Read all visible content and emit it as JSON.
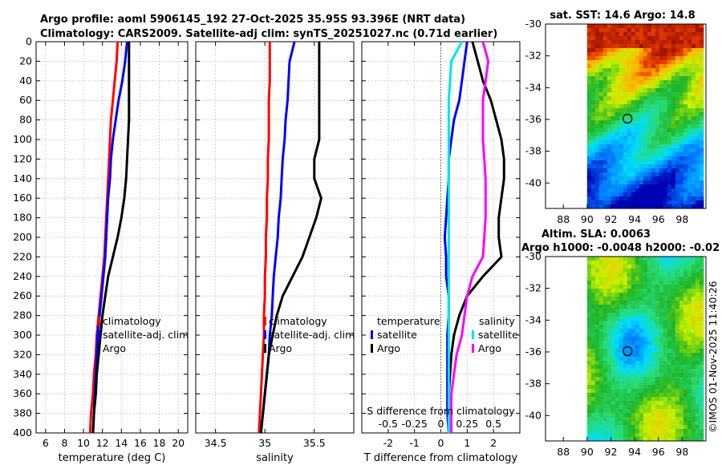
{
  "chart_data": {
    "type": "line",
    "title_line1": "Argo profile: aoml 5906145_192 27-Oct-2025 35.95S 93.396E (NRT data)",
    "title_line2": "Climatology: CARS2009. Satellite-adj clim: synTS_20251027.nc (0.71d earlier)",
    "depth": [
      0,
      20,
      40,
      60,
      80,
      100,
      120,
      140,
      160,
      180,
      200,
      220,
      240,
      260,
      280,
      300,
      320,
      340,
      360,
      380,
      400
    ],
    "ylim": [
      400,
      0
    ],
    "yticks": [
      0,
      20,
      40,
      60,
      80,
      100,
      120,
      140,
      160,
      180,
      200,
      220,
      240,
      260,
      280,
      300,
      320,
      340,
      360,
      380,
      400
    ],
    "panels": [
      {
        "name": "temperature",
        "xlabel": "temperature (deg C)",
        "xlim": [
          5,
          21
        ],
        "xticks": [
          "6",
          "8",
          "10",
          "12",
          "14",
          "16",
          "18",
          "20"
        ],
        "xtick_values": [
          6,
          8,
          10,
          12,
          14,
          16,
          18,
          20
        ],
        "series": [
          {
            "name": "climatology",
            "color": "#ff0000",
            "values": [
              13.6,
              13.5,
              13.3,
              13.1,
              12.9,
              12.8,
              12.7,
              12.6,
              12.5,
              12.4,
              12.3,
              12.2,
              12.0,
              11.8,
              11.6,
              11.4,
              11.3,
              11.1,
              11.0,
              10.8,
              10.7
            ]
          },
          {
            "name": "satellite-adj. clim",
            "color": "#0000ff",
            "values": [
              14.6,
              14.4,
              14.1,
              13.7,
              13.4,
              13.1,
              12.9,
              12.8,
              12.6,
              12.5,
              12.4,
              12.3,
              12.1,
              11.9,
              11.7,
              11.5,
              11.4,
              11.3,
              11.2,
              11.1,
              11.0
            ]
          },
          {
            "name": "Argo",
            "color": "#000000",
            "values": [
              14.8,
              14.8,
              14.8,
              14.8,
              14.8,
              14.7,
              14.6,
              14.5,
              14.3,
              14.0,
              13.6,
              13.1,
              12.6,
              12.3,
              12.0,
              11.8,
              11.6,
              11.4,
              11.3,
              11.1,
              11.0
            ]
          }
        ],
        "legend": [
          "climatology",
          "satellite-adj. clim",
          "Argo"
        ]
      },
      {
        "name": "salinity",
        "xlabel": "salinity",
        "xlim": [
          34.3,
          35.9
        ],
        "xticks": [
          "34.5",
          "35",
          "35.5"
        ],
        "xtick_values": [
          34.5,
          35.0,
          35.5
        ],
        "series": [
          {
            "name": "climatology",
            "color": "#ff0000",
            "values": [
              35.05,
              35.05,
              35.05,
              35.04,
              35.04,
              35.04,
              35.03,
              35.03,
              35.02,
              35.02,
              35.01,
              35.01,
              35.0,
              35.0,
              34.99,
              34.99,
              34.98,
              34.97,
              34.96,
              34.95,
              34.94
            ]
          },
          {
            "name": "satellite-adj. clim",
            "color": "#0000ff",
            "values": [
              35.3,
              35.25,
              35.24,
              35.23,
              35.21,
              35.2,
              35.18,
              35.17,
              35.16,
              35.14,
              35.13,
              35.11,
              35.09,
              35.08,
              35.07,
              35.05,
              35.04,
              35.02,
              35.0,
              34.98,
              34.96
            ]
          },
          {
            "name": "Argo",
            "color": "#000000",
            "values": [
              35.55,
              35.55,
              35.55,
              35.55,
              35.55,
              35.55,
              35.5,
              35.5,
              35.57,
              35.52,
              35.45,
              35.38,
              35.28,
              35.18,
              35.12,
              35.08,
              35.04,
              35.02,
              35.0,
              34.98,
              34.96
            ]
          }
        ],
        "legend": [
          "climatology",
          "satellite-adj. clim",
          "Argo"
        ]
      },
      {
        "name": "difference",
        "xlabel": "T difference from climatology",
        "xlim": [
          -3.0,
          3.0
        ],
        "xticks": [
          "-2",
          "-1",
          "0",
          "1",
          "2"
        ],
        "xtick_values": [
          -2,
          -1,
          0,
          1,
          2
        ],
        "toplabel": "S difference from climatology",
        "s_ticks": [
          "-0.5",
          "-0.25",
          "0",
          "0.25",
          "0.5"
        ],
        "series": [
          {
            "name": "temperature satellite",
            "color": "#0000ff",
            "values": [
              1.0,
              0.9,
              0.8,
              0.7,
              0.5,
              0.4,
              0.3,
              0.3,
              0.25,
              0.2,
              0.15,
              0.2,
              0.2,
              0.3,
              0.3,
              0.25,
              0.25,
              0.25,
              0.25,
              0.25,
              0.3
            ]
          },
          {
            "name": "temperature Argo",
            "color": "#000000",
            "values": [
              1.2,
              1.4,
              1.6,
              1.9,
              2.1,
              2.3,
              2.4,
              2.4,
              2.3,
              2.2,
              2.2,
              2.3,
              1.6,
              1.0,
              0.7,
              0.5,
              0.4,
              0.35,
              0.3,
              0.3,
              0.3
            ]
          },
          {
            "name": "salinity satellite",
            "color": "#00e5e5",
            "values": [
              0.8,
              0.4,
              0.35,
              0.3,
              0.3,
              0.3,
              0.3,
              0.3,
              0.3,
              0.3,
              0.3,
              0.3,
              0.3,
              0.3,
              0.3,
              0.3,
              0.3,
              0.3,
              0.3,
              0.3,
              0.3
            ]
          },
          {
            "name": "salinity Argo",
            "color": "#ff00ff",
            "values": [
              1.6,
              1.8,
              1.7,
              1.6,
              1.6,
              1.6,
              1.65,
              1.7,
              1.7,
              1.7,
              1.65,
              1.6,
              1.2,
              1.0,
              0.9,
              0.8,
              0.6,
              0.5,
              0.4,
              0.4,
              0.4
            ]
          }
        ],
        "legend_left_title": "temperature",
        "legend_right_title": "salinity",
        "legend_items": [
          "satellite",
          "Argo"
        ]
      }
    ],
    "maps": [
      {
        "name": "sst",
        "title": "sat. SST: 14.6 Argo: 14.8",
        "yticks": [
          "-30",
          "-32",
          "-34",
          "-36",
          "-38",
          "-40"
        ],
        "ytick_values": [
          -30,
          -32,
          -34,
          -36,
          -38,
          -40
        ],
        "xticks": [
          "88",
          "90",
          "92",
          "94",
          "96",
          "98"
        ],
        "xtick_values": [
          88,
          90,
          92,
          94,
          96,
          98
        ],
        "ylim": [
          -30,
          -41.6
        ],
        "xlim": [
          86.5,
          100
        ],
        "data_xstart": 90,
        "marker": {
          "lon": 93.4,
          "lat": -35.95
        }
      },
      {
        "name": "sla",
        "title1": "Altim. SLA: 0.0063",
        "title2": "Argo h1000: -0.0048 h2000: -0.02",
        "yticks": [
          "-30",
          "-32",
          "-34",
          "-36",
          "-38",
          "-40"
        ],
        "ytick_values": [
          -30,
          -32,
          -34,
          -36,
          -38,
          -40
        ],
        "xticks": [
          "88",
          "90",
          "92",
          "94",
          "96",
          "98"
        ],
        "xtick_values": [
          88,
          90,
          92,
          94,
          96,
          98
        ],
        "ylim": [
          -30,
          -41.6
        ],
        "xlim": [
          86.5,
          100
        ],
        "data_xstart": 90,
        "marker": {
          "lon": 93.4,
          "lat": -35.95
        }
      }
    ],
    "credit": "©IMOS 01-Nov-2025 11:40:26"
  }
}
